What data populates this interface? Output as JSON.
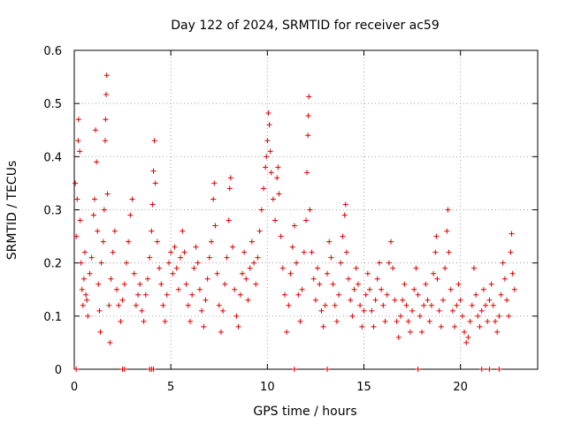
{
  "chart_data": {
    "type": "scatter",
    "title": "Day 122 of 2024, SRMTID for receiver ac59",
    "xlabel": "GPS time / hours",
    "ylabel": "SRMTID / TECUs",
    "xlim": [
      0,
      24
    ],
    "ylim": [
      0,
      0.6
    ],
    "xticks": [
      0,
      5,
      10,
      15,
      20
    ],
    "xtick_labels": [
      "0",
      "5",
      "10",
      "15",
      "20"
    ],
    "yticks": [
      0,
      0.1,
      0.2,
      0.3,
      0.4,
      0.5,
      0.6
    ],
    "ytick_labels": [
      "0",
      "0.1",
      "0.2",
      "0.3",
      "0.4",
      "0.5",
      "0.6"
    ],
    "grid": true,
    "marker": "+",
    "color": "#e00000",
    "series": [
      {
        "name": "SRMTID",
        "points": [
          [
            0.05,
            0.35
          ],
          [
            0.1,
            0.25
          ],
          [
            0.15,
            0.32
          ],
          [
            0.2,
            0.43
          ],
          [
            0.22,
            0.47
          ],
          [
            0.28,
            0.41
          ],
          [
            0.3,
            0.28
          ],
          [
            0.35,
            0.2
          ],
          [
            0.4,
            0.15
          ],
          [
            0.45,
            0.12
          ],
          [
            0.5,
            0.17
          ],
          [
            0.55,
            0.22
          ],
          [
            0.6,
            0.14
          ],
          [
            0.65,
            0.13
          ],
          [
            0.7,
            0.1
          ],
          [
            0.8,
            0.18
          ],
          [
            0.9,
            0.21
          ],
          [
            1.0,
            0.29
          ],
          [
            1.05,
            0.32
          ],
          [
            1.1,
            0.45
          ],
          [
            1.15,
            0.39
          ],
          [
            1.2,
            0.26
          ],
          [
            1.25,
            0.16
          ],
          [
            1.3,
            0.11
          ],
          [
            1.35,
            0.07
          ],
          [
            1.4,
            0.2
          ],
          [
            1.5,
            0.24
          ],
          [
            1.55,
            0.3
          ],
          [
            1.6,
            0.43
          ],
          [
            1.62,
            0.47
          ],
          [
            1.65,
            0.517
          ],
          [
            1.68,
            0.553
          ],
          [
            1.72,
            0.33
          ],
          [
            1.8,
            0.12
          ],
          [
            1.85,
            0.05
          ],
          [
            1.9,
            0.17
          ],
          [
            2.0,
            0.22
          ],
          [
            2.1,
            0.26
          ],
          [
            2.2,
            0.15
          ],
          [
            2.3,
            0.12
          ],
          [
            2.4,
            0.09
          ],
          [
            2.5,
            0.13
          ],
          [
            2.6,
            0.16
          ],
          [
            2.7,
            0.2
          ],
          [
            2.8,
            0.24
          ],
          [
            2.9,
            0.29
          ],
          [
            3.0,
            0.32
          ],
          [
            3.1,
            0.18
          ],
          [
            3.2,
            0.12
          ],
          [
            3.3,
            0.14
          ],
          [
            3.4,
            0.16
          ],
          [
            3.5,
            0.11
          ],
          [
            3.6,
            0.09
          ],
          [
            3.7,
            0.14
          ],
          [
            3.8,
            0.17
          ],
          [
            3.9,
            0.21
          ],
          [
            4.0,
            0.26
          ],
          [
            4.05,
            0.31
          ],
          [
            4.1,
            0.373
          ],
          [
            4.15,
            0.43
          ],
          [
            4.2,
            0.35
          ],
          [
            4.3,
            0.24
          ],
          [
            4.4,
            0.19
          ],
          [
            4.5,
            0.16
          ],
          [
            4.6,
            0.12
          ],
          [
            4.7,
            0.09
          ],
          [
            4.8,
            0.14
          ],
          [
            4.9,
            0.2
          ],
          [
            5.0,
            0.22
          ],
          [
            5.1,
            0.18
          ],
          [
            5.2,
            0.23
          ],
          [
            5.3,
            0.19
          ],
          [
            5.4,
            0.15
          ],
          [
            5.5,
            0.21
          ],
          [
            5.6,
            0.26
          ],
          [
            5.7,
            0.22
          ],
          [
            5.8,
            0.16
          ],
          [
            5.9,
            0.12
          ],
          [
            6.0,
            0.09
          ],
          [
            6.1,
            0.14
          ],
          [
            6.2,
            0.19
          ],
          [
            6.3,
            0.23
          ],
          [
            6.4,
            0.2
          ],
          [
            6.5,
            0.15
          ],
          [
            6.6,
            0.11
          ],
          [
            6.7,
            0.08
          ],
          [
            6.8,
            0.13
          ],
          [
            6.9,
            0.17
          ],
          [
            7.0,
            0.21
          ],
          [
            7.1,
            0.24
          ],
          [
            7.2,
            0.32
          ],
          [
            7.25,
            0.35
          ],
          [
            7.3,
            0.27
          ],
          [
            7.4,
            0.18
          ],
          [
            7.5,
            0.12
          ],
          [
            7.6,
            0.07
          ],
          [
            7.7,
            0.11
          ],
          [
            7.8,
            0.16
          ],
          [
            7.9,
            0.21
          ],
          [
            8.0,
            0.28
          ],
          [
            8.05,
            0.34
          ],
          [
            8.1,
            0.36
          ],
          [
            8.2,
            0.23
          ],
          [
            8.3,
            0.15
          ],
          [
            8.4,
            0.1
          ],
          [
            8.5,
            0.08
          ],
          [
            8.6,
            0.14
          ],
          [
            8.7,
            0.18
          ],
          [
            8.8,
            0.22
          ],
          [
            8.9,
            0.17
          ],
          [
            9.0,
            0.13
          ],
          [
            9.1,
            0.19
          ],
          [
            9.2,
            0.24
          ],
          [
            9.3,
            0.2
          ],
          [
            9.4,
            0.16
          ],
          [
            9.5,
            0.21
          ],
          [
            9.6,
            0.26
          ],
          [
            9.7,
            0.3
          ],
          [
            9.8,
            0.34
          ],
          [
            9.9,
            0.38
          ],
          [
            9.95,
            0.4
          ],
          [
            10.0,
            0.43
          ],
          [
            10.05,
            0.482
          ],
          [
            10.1,
            0.46
          ],
          [
            10.15,
            0.41
          ],
          [
            10.2,
            0.37
          ],
          [
            10.3,
            0.32
          ],
          [
            10.4,
            0.28
          ],
          [
            10.5,
            0.36
          ],
          [
            10.55,
            0.38
          ],
          [
            10.6,
            0.33
          ],
          [
            10.7,
            0.25
          ],
          [
            10.8,
            0.19
          ],
          [
            10.9,
            0.14
          ],
          [
            11.0,
            0.07
          ],
          [
            11.1,
            0.12
          ],
          [
            11.2,
            0.18
          ],
          [
            11.3,
            0.23
          ],
          [
            11.4,
            0.27
          ],
          [
            11.5,
            0.2
          ],
          [
            11.6,
            0.14
          ],
          [
            11.7,
            0.09
          ],
          [
            11.8,
            0.15
          ],
          [
            11.9,
            0.22
          ],
          [
            12.0,
            0.28
          ],
          [
            12.05,
            0.37
          ],
          [
            12.1,
            0.44
          ],
          [
            12.12,
            0.477
          ],
          [
            12.15,
            0.513
          ],
          [
            12.2,
            0.3
          ],
          [
            12.3,
            0.22
          ],
          [
            12.4,
            0.17
          ],
          [
            12.5,
            0.13
          ],
          [
            12.6,
            0.19
          ],
          [
            12.7,
            0.16
          ],
          [
            12.8,
            0.11
          ],
          [
            12.9,
            0.08
          ],
          [
            13.0,
            0.12
          ],
          [
            13.1,
            0.18
          ],
          [
            13.2,
            0.24
          ],
          [
            13.3,
            0.21
          ],
          [
            13.4,
            0.16
          ],
          [
            13.5,
            0.12
          ],
          [
            13.6,
            0.09
          ],
          [
            13.7,
            0.14
          ],
          [
            13.8,
            0.2
          ],
          [
            13.9,
            0.25
          ],
          [
            14.0,
            0.29
          ],
          [
            14.05,
            0.31
          ],
          [
            14.1,
            0.22
          ],
          [
            14.2,
            0.17
          ],
          [
            14.3,
            0.13
          ],
          [
            14.4,
            0.1
          ],
          [
            14.5,
            0.15
          ],
          [
            14.6,
            0.19
          ],
          [
            14.7,
            0.16
          ],
          [
            14.8,
            0.12
          ],
          [
            14.9,
            0.08
          ],
          [
            15.0,
            0.11
          ],
          [
            15.1,
            0.14
          ],
          [
            15.2,
            0.18
          ],
          [
            15.3,
            0.15
          ],
          [
            15.4,
            0.11
          ],
          [
            15.5,
            0.08
          ],
          [
            15.6,
            0.13
          ],
          [
            15.7,
            0.17
          ],
          [
            15.8,
            0.2
          ],
          [
            15.9,
            0.15
          ],
          [
            16.0,
            0.12
          ],
          [
            16.1,
            0.09
          ],
          [
            16.2,
            0.14
          ],
          [
            16.3,
            0.2
          ],
          [
            16.4,
            0.24
          ],
          [
            16.5,
            0.19
          ],
          [
            16.6,
            0.13
          ],
          [
            16.7,
            0.09
          ],
          [
            16.8,
            0.06
          ],
          [
            16.9,
            0.1
          ],
          [
            17.0,
            0.13
          ],
          [
            17.1,
            0.16
          ],
          [
            17.2,
            0.12
          ],
          [
            17.3,
            0.09
          ],
          [
            17.4,
            0.07
          ],
          [
            17.5,
            0.11
          ],
          [
            17.6,
            0.15
          ],
          [
            17.7,
            0.19
          ],
          [
            17.8,
            0.14
          ],
          [
            17.9,
            0.1
          ],
          [
            18.0,
            0.07
          ],
          [
            18.1,
            0.12
          ],
          [
            18.2,
            0.16
          ],
          [
            18.3,
            0.13
          ],
          [
            18.4,
            0.09
          ],
          [
            18.5,
            0.12
          ],
          [
            18.6,
            0.18
          ],
          [
            18.7,
            0.22
          ],
          [
            18.75,
            0.25
          ],
          [
            18.8,
            0.17
          ],
          [
            18.9,
            0.11
          ],
          [
            19.0,
            0.08
          ],
          [
            19.1,
            0.13
          ],
          [
            19.2,
            0.19
          ],
          [
            19.3,
            0.26
          ],
          [
            19.35,
            0.3
          ],
          [
            19.4,
            0.22
          ],
          [
            19.5,
            0.15
          ],
          [
            19.6,
            0.11
          ],
          [
            19.7,
            0.08
          ],
          [
            19.8,
            0.12
          ],
          [
            19.9,
            0.16
          ],
          [
            20.0,
            0.13
          ],
          [
            20.1,
            0.1
          ],
          [
            20.2,
            0.07
          ],
          [
            20.3,
            0.05
          ],
          [
            20.4,
            0.06
          ],
          [
            20.5,
            0.09
          ],
          [
            20.6,
            0.12
          ],
          [
            20.7,
            0.19
          ],
          [
            20.8,
            0.14
          ],
          [
            20.9,
            0.1
          ],
          [
            21.0,
            0.08
          ],
          [
            21.1,
            0.11
          ],
          [
            21.2,
            0.15
          ],
          [
            21.3,
            0.12
          ],
          [
            21.4,
            0.09
          ],
          [
            21.5,
            0.13
          ],
          [
            21.6,
            0.16
          ],
          [
            21.7,
            0.12
          ],
          [
            21.8,
            0.09
          ],
          [
            21.9,
            0.07
          ],
          [
            22.0,
            0.1
          ],
          [
            22.1,
            0.14
          ],
          [
            22.2,
            0.2
          ],
          [
            22.3,
            0.17
          ],
          [
            22.4,
            0.13
          ],
          [
            22.5,
            0.1
          ],
          [
            22.6,
            0.22
          ],
          [
            22.65,
            0.255
          ],
          [
            22.7,
            0.18
          ],
          [
            22.8,
            0.15
          ]
        ]
      }
    ],
    "zero_markers_x": [
      0.1,
      2.5,
      2.6,
      3.9,
      4.0,
      4.1,
      11.4,
      13.1,
      17.8,
      21.1,
      21.5,
      22.0
    ]
  }
}
